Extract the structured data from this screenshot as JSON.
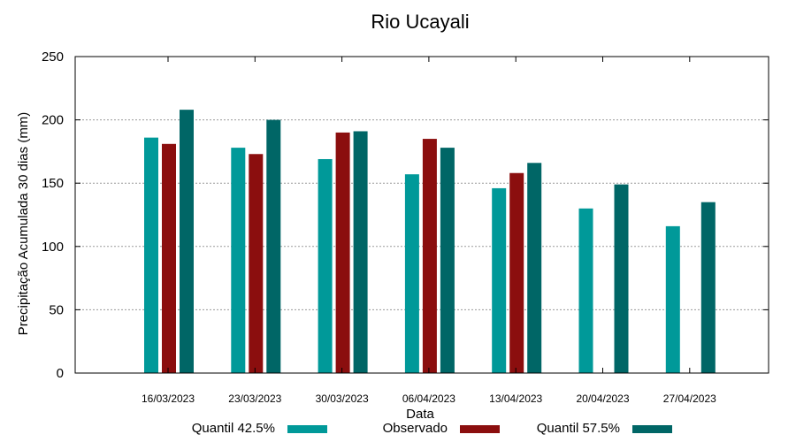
{
  "chart_data": {
    "type": "bar",
    "title": "Rio Ucayali",
    "xlabel": "Data",
    "ylabel": "Precipitação Acumulada 30 dias (mm)",
    "ylim": [
      0,
      250
    ],
    "yticks": [
      0,
      50,
      100,
      150,
      200,
      250
    ],
    "grid": true,
    "legend_position": "bottom",
    "categories": [
      "16/03/2023",
      "23/03/2023",
      "30/03/2023",
      "06/04/2023",
      "13/04/2023",
      "20/04/2023",
      "27/04/2023"
    ],
    "series": [
      {
        "name": "Quantil 42.5%",
        "color": "#009999",
        "values": [
          186,
          178,
          169,
          157,
          146,
          130,
          116
        ]
      },
      {
        "name": "Observado",
        "color": "#8b0e0e",
        "values": [
          181,
          173,
          190,
          185,
          158,
          null,
          null
        ]
      },
      {
        "name": "Quantil 57.5%",
        "color": "#006666",
        "values": [
          208,
          200,
          191,
          178,
          166,
          149,
          135
        ]
      }
    ]
  }
}
